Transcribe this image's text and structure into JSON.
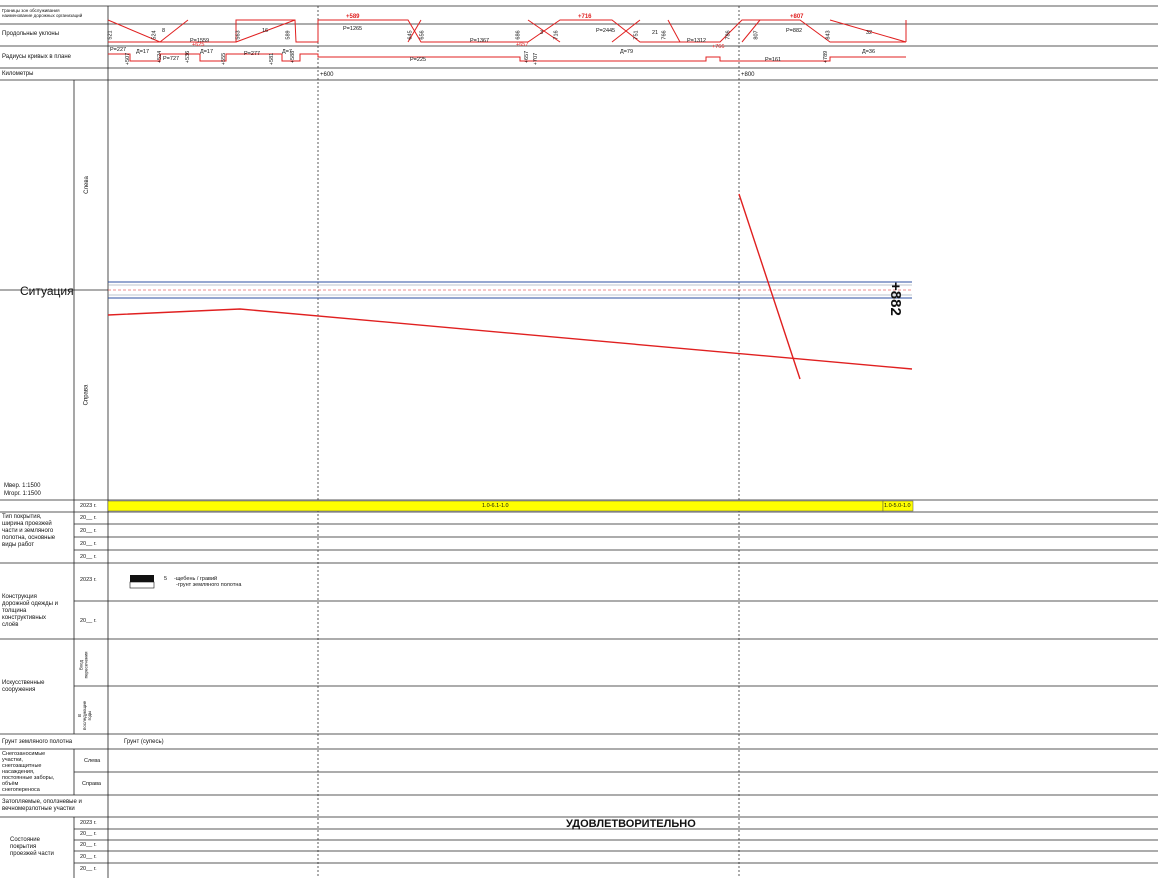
{
  "header_rows": {
    "boundaries": "Границы зон обслуживания\nнаименование дорожных организаций",
    "gradients": "Продольные уклоны",
    "curves": "Радиусы кривых в плане",
    "kilometers": "Километры"
  },
  "km_marks": [
    "+600",
    "+800"
  ],
  "red_marks": [
    "+589",
    "+716",
    "+807"
  ],
  "gradient_labels": [
    "P=1265",
    "P=1559",
    "P=1367",
    "P=2445",
    "P=1312",
    "P=882"
  ],
  "gradient_values": [
    "8",
    "16",
    "3",
    "21",
    "32"
  ],
  "profile_points": [
    "521",
    "524",
    "563",
    "589",
    "645",
    "656",
    "686",
    "716",
    "751",
    "766",
    "786",
    "807",
    "843"
  ],
  "curve_labels": [
    "P=227",
    "Д=17",
    "P=727",
    "Д=17",
    "P=277",
    "Д=7",
    "P=225",
    "Д=79",
    "P=161",
    "Д=36"
  ],
  "curve_points": [
    "+507",
    "+524",
    "+536",
    "+555",
    "+581",
    "+588",
    "+657",
    "+707",
    "+789"
  ],
  "curve_red_points": [
    "+625",
    "+657",
    "+766"
  ],
  "situation": {
    "label": "Ситуация",
    "left": "Слева",
    "right": "Справа",
    "end_mark": "+882",
    "scale_h": "Мгорг. 1:1500",
    "scale_v": "Мвер. 1:1500"
  },
  "coating": {
    "label": "Тип покрытия,\nширина проезжей\nчасти и земляного\nполотна, основные\nвиды работ",
    "years": [
      "2023 г.",
      "20__ г.",
      "20__ г.",
      "20__ г.",
      "20__ г."
    ],
    "bar_main": "1.0-6.1-1.0",
    "bar_end": "1.0-5.0-1.0"
  },
  "construction": {
    "label": "Конструкция\nдорожной одежды и\nтолщина\nконструктивных\nслоёв",
    "years": [
      "2023 г.",
      "20__ г."
    ],
    "thickness": "5",
    "layer1": "-щебень / гравий",
    "layer2": "-грунт земляного полотна"
  },
  "structures": {
    "label": "Искусственные\nсооружения",
    "sub1": "Вход\nпересечения",
    "sub2": "В\nпоследующие\nгоды"
  },
  "soil": {
    "label": "Грунт земляного полотна",
    "value": "Грунт (супесь)"
  },
  "snow": {
    "label": "Снегозаносимые\nучастки,\nснегозащитные\nнасаждения,\nпостоянные заборы,\nобъём\nснегопереноса",
    "left": "Слева",
    "right": "Справа"
  },
  "flooded": {
    "label": "Затопляемые, оползневые и\nвечномерзлотные участки"
  },
  "condition": {
    "label": "Состояние\nпокрытия\nпроезжей части",
    "years": [
      "2023 г.",
      "20__ г.",
      "20__ г.",
      "20__ г.",
      "20__ г."
    ],
    "status": "УДОВЛЕТВОРИТЕЛЬНО"
  },
  "colors": {
    "red": "#e02020",
    "yellow": "#ffff00",
    "road_blue": "#2e4fa0"
  }
}
